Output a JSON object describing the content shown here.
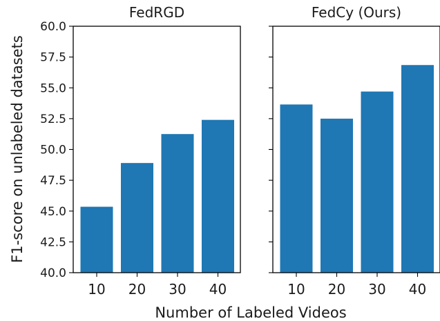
{
  "chart_data": {
    "type": "bar",
    "xlabel": "Number of Labeled Videos",
    "ylabel": "F1-score on unlabeled datasets",
    "ylim": [
      40.0,
      60.0
    ],
    "yticks": [
      "40.0",
      "42.5",
      "45.0",
      "47.5",
      "50.0",
      "52.5",
      "55.0",
      "57.5",
      "60.0"
    ],
    "bar_color": "#1f77b4",
    "grid": false,
    "panels": [
      {
        "title": "FedRGD",
        "categories": [
          "10",
          "20",
          "30",
          "40"
        ],
        "values": [
          45.35,
          48.9,
          51.25,
          52.4
        ]
      },
      {
        "title": "FedCy (Ours)",
        "categories": [
          "10",
          "20",
          "30",
          "40"
        ],
        "values": [
          53.65,
          52.5,
          54.7,
          56.85
        ]
      }
    ]
  }
}
